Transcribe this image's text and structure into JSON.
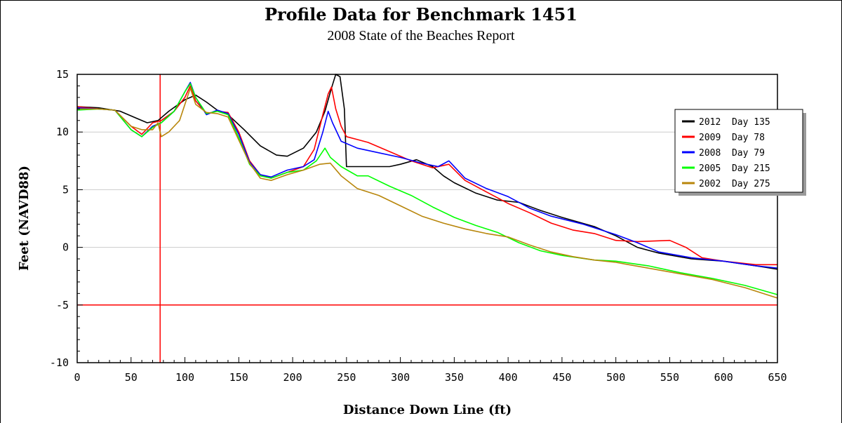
{
  "chart_data": {
    "type": "line",
    "title": "Profile Data for Benchmark 1451",
    "subtitle": "2008 State of the Beaches Report",
    "xlabel": "Distance Down Line (ft)",
    "ylabel": "Feet (NAVD88)",
    "xlim": [
      0,
      650
    ],
    "ylim": [
      -10,
      15
    ],
    "xticks": [
      0,
      50,
      100,
      150,
      200,
      250,
      300,
      350,
      400,
      450,
      500,
      550,
      600,
      650
    ],
    "yticks": [
      -10,
      -5,
      0,
      5,
      10,
      15
    ],
    "grid": "horizontal",
    "legend_position": "top-right",
    "reference_lines": [
      {
        "orientation": "vertical",
        "x": 77,
        "color": "#ff0000"
      },
      {
        "orientation": "horizontal",
        "y": -5,
        "color": "#ff0000"
      }
    ],
    "series": [
      {
        "name": "2012",
        "legend_label": "2012  Day 135",
        "color": "#000000",
        "points": [
          [
            0,
            12.2
          ],
          [
            20,
            12.1
          ],
          [
            40,
            11.8
          ],
          [
            55,
            11.2
          ],
          [
            65,
            10.8
          ],
          [
            75,
            11.0
          ],
          [
            85,
            11.8
          ],
          [
            100,
            12.8
          ],
          [
            110,
            13.2
          ],
          [
            120,
            12.6
          ],
          [
            130,
            11.9
          ],
          [
            140,
            11.5
          ],
          [
            155,
            10.2
          ],
          [
            170,
            8.8
          ],
          [
            185,
            8.0
          ],
          [
            195,
            7.9
          ],
          [
            210,
            8.6
          ],
          [
            222,
            10.0
          ],
          [
            230,
            11.8
          ],
          [
            236,
            13.8
          ],
          [
            240,
            15.0
          ],
          [
            244,
            14.8
          ],
          [
            248,
            12.0
          ],
          [
            250,
            7.0
          ],
          [
            270,
            7.0
          ],
          [
            290,
            7.0
          ],
          [
            300,
            7.2
          ],
          [
            315,
            7.6
          ],
          [
            330,
            7.0
          ],
          [
            340,
            6.2
          ],
          [
            350,
            5.6
          ],
          [
            370,
            4.7
          ],
          [
            390,
            4.1
          ],
          [
            410,
            3.9
          ],
          [
            430,
            3.2
          ],
          [
            450,
            2.6
          ],
          [
            480,
            1.8
          ],
          [
            500,
            1.0
          ],
          [
            520,
            0.0
          ],
          [
            540,
            -0.5
          ],
          [
            570,
            -1.0
          ],
          [
            600,
            -1.2
          ],
          [
            630,
            -1.6
          ],
          [
            650,
            -1.9
          ]
        ]
      },
      {
        "name": "2009",
        "legend_label": "2009  Day 78",
        "color": "#ff0000",
        "points": [
          [
            0,
            12.2
          ],
          [
            20,
            12.0
          ],
          [
            35,
            11.9
          ],
          [
            50,
            10.5
          ],
          [
            60,
            9.8
          ],
          [
            70,
            10.8
          ],
          [
            78,
            11.0
          ],
          [
            90,
            11.8
          ],
          [
            100,
            13.0
          ],
          [
            105,
            14.0
          ],
          [
            110,
            12.7
          ],
          [
            120,
            11.6
          ],
          [
            130,
            11.8
          ],
          [
            140,
            11.7
          ],
          [
            150,
            10.0
          ],
          [
            160,
            7.5
          ],
          [
            170,
            6.3
          ],
          [
            180,
            6.0
          ],
          [
            195,
            6.5
          ],
          [
            210,
            7.0
          ],
          [
            220,
            8.5
          ],
          [
            228,
            11.5
          ],
          [
            233,
            13.3
          ],
          [
            236,
            13.9
          ],
          [
            240,
            12.0
          ],
          [
            245,
            10.5
          ],
          [
            250,
            9.6
          ],
          [
            270,
            9.1
          ],
          [
            290,
            8.3
          ],
          [
            310,
            7.5
          ],
          [
            330,
            6.9
          ],
          [
            345,
            7.2
          ],
          [
            360,
            5.8
          ],
          [
            380,
            4.8
          ],
          [
            400,
            3.8
          ],
          [
            420,
            3.0
          ],
          [
            440,
            2.1
          ],
          [
            460,
            1.5
          ],
          [
            480,
            1.2
          ],
          [
            500,
            0.6
          ],
          [
            520,
            0.5
          ],
          [
            550,
            0.6
          ],
          [
            565,
            0.0
          ],
          [
            580,
            -0.9
          ],
          [
            600,
            -1.2
          ],
          [
            630,
            -1.5
          ],
          [
            650,
            -1.5
          ]
        ]
      },
      {
        "name": "2008",
        "legend_label": "2008  Day 79",
        "color": "#0000ff",
        "points": [
          [
            0,
            12.1
          ],
          [
            20,
            12.0
          ],
          [
            35,
            11.9
          ],
          [
            50,
            10.2
          ],
          [
            60,
            9.6
          ],
          [
            70,
            10.5
          ],
          [
            78,
            10.8
          ],
          [
            90,
            11.8
          ],
          [
            100,
            13.5
          ],
          [
            105,
            14.3
          ],
          [
            110,
            13.0
          ],
          [
            120,
            11.5
          ],
          [
            130,
            11.9
          ],
          [
            140,
            11.6
          ],
          [
            150,
            9.8
          ],
          [
            160,
            7.4
          ],
          [
            170,
            6.3
          ],
          [
            180,
            6.1
          ],
          [
            195,
            6.7
          ],
          [
            210,
            7.0
          ],
          [
            220,
            7.6
          ],
          [
            228,
            10.0
          ],
          [
            233,
            11.8
          ],
          [
            237,
            10.8
          ],
          [
            245,
            9.2
          ],
          [
            260,
            8.6
          ],
          [
            280,
            8.2
          ],
          [
            300,
            7.8
          ],
          [
            320,
            7.3
          ],
          [
            335,
            7.0
          ],
          [
            345,
            7.5
          ],
          [
            352,
            6.8
          ],
          [
            360,
            6.0
          ],
          [
            380,
            5.1
          ],
          [
            400,
            4.4
          ],
          [
            420,
            3.4
          ],
          [
            440,
            2.7
          ],
          [
            470,
            2.0
          ],
          [
            500,
            1.1
          ],
          [
            520,
            0.4
          ],
          [
            540,
            -0.4
          ],
          [
            570,
            -0.9
          ],
          [
            600,
            -1.2
          ],
          [
            630,
            -1.6
          ],
          [
            650,
            -1.8
          ]
        ]
      },
      {
        "name": "2005",
        "legend_label": "2005  Day 215",
        "color": "#00ff00",
        "points": [
          [
            0,
            11.9
          ],
          [
            20,
            12.0
          ],
          [
            35,
            11.9
          ],
          [
            50,
            10.2
          ],
          [
            60,
            9.6
          ],
          [
            70,
            10.4
          ],
          [
            78,
            10.8
          ],
          [
            90,
            11.8
          ],
          [
            100,
            13.5
          ],
          [
            105,
            14.2
          ],
          [
            110,
            13.0
          ],
          [
            120,
            11.6
          ],
          [
            130,
            11.8
          ],
          [
            140,
            11.5
          ],
          [
            150,
            9.5
          ],
          [
            160,
            7.2
          ],
          [
            170,
            6.2
          ],
          [
            180,
            6.0
          ],
          [
            195,
            6.5
          ],
          [
            210,
            6.7
          ],
          [
            222,
            7.5
          ],
          [
            230,
            8.6
          ],
          [
            235,
            7.8
          ],
          [
            245,
            7.0
          ],
          [
            260,
            6.2
          ],
          [
            270,
            6.2
          ],
          [
            290,
            5.3
          ],
          [
            310,
            4.5
          ],
          [
            330,
            3.5
          ],
          [
            350,
            2.6
          ],
          [
            370,
            1.9
          ],
          [
            390,
            1.3
          ],
          [
            410,
            0.4
          ],
          [
            430,
            -0.3
          ],
          [
            450,
            -0.7
          ],
          [
            480,
            -1.1
          ],
          [
            500,
            -1.2
          ],
          [
            530,
            -1.6
          ],
          [
            560,
            -2.2
          ],
          [
            590,
            -2.7
          ],
          [
            620,
            -3.3
          ],
          [
            650,
            -4.1
          ]
        ]
      },
      {
        "name": "2002",
        "legend_label": "2002  Day 275",
        "color": "#b8860b",
        "points": [
          [
            0,
            12.0
          ],
          [
            20,
            12.0
          ],
          [
            35,
            11.9
          ],
          [
            50,
            10.5
          ],
          [
            60,
            10.2
          ],
          [
            70,
            10.2
          ],
          [
            75,
            10.8
          ],
          [
            78,
            9.6
          ],
          [
            85,
            10.0
          ],
          [
            95,
            11.0
          ],
          [
            105,
            13.8
          ],
          [
            110,
            12.4
          ],
          [
            120,
            11.7
          ],
          [
            130,
            11.6
          ],
          [
            140,
            11.3
          ],
          [
            150,
            9.3
          ],
          [
            160,
            7.3
          ],
          [
            170,
            6.0
          ],
          [
            180,
            5.8
          ],
          [
            195,
            6.3
          ],
          [
            210,
            6.7
          ],
          [
            225,
            7.2
          ],
          [
            235,
            7.3
          ],
          [
            245,
            6.2
          ],
          [
            260,
            5.1
          ],
          [
            280,
            4.5
          ],
          [
            300,
            3.6
          ],
          [
            320,
            2.7
          ],
          [
            340,
            2.1
          ],
          [
            360,
            1.6
          ],
          [
            380,
            1.2
          ],
          [
            400,
            0.9
          ],
          [
            420,
            0.2
          ],
          [
            440,
            -0.4
          ],
          [
            460,
            -0.8
          ],
          [
            480,
            -1.1
          ],
          [
            500,
            -1.3
          ],
          [
            530,
            -1.8
          ],
          [
            560,
            -2.3
          ],
          [
            590,
            -2.8
          ],
          [
            620,
            -3.5
          ],
          [
            650,
            -4.4
          ]
        ]
      }
    ]
  }
}
